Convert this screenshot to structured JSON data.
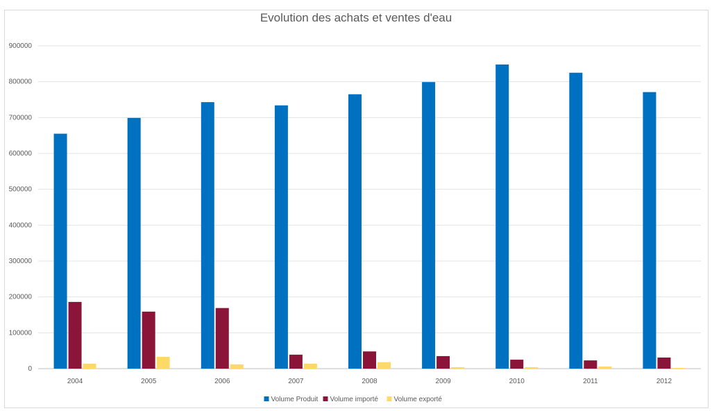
{
  "chart_data": {
    "type": "bar",
    "title": "Evolution des achats et ventes d'eau",
    "xlabel": "",
    "ylabel": "",
    "categories": [
      "2004",
      "2005",
      "2006",
      "2007",
      "2008",
      "2009",
      "2010",
      "2011",
      "2012"
    ],
    "ylim": [
      0,
      900000
    ],
    "yticks": [
      "0",
      "100000",
      "200000",
      "300000",
      "400000",
      "500000",
      "600000",
      "700000",
      "800000",
      "900000"
    ],
    "grid": true,
    "legend_position": "bottom",
    "series": [
      {
        "name": "Volume Produit",
        "color": "#0070c0",
        "values": [
          655000,
          699000,
          743000,
          734000,
          765000,
          799000,
          848000,
          825000,
          771000
        ]
      },
      {
        "name": "Volume importé",
        "color": "#8b1538",
        "values": [
          186000,
          159000,
          169000,
          39000,
          48000,
          35000,
          25000,
          23000,
          31000
        ]
      },
      {
        "name": "Volume exporté",
        "color": "#ffd966",
        "values": [
          14000,
          33000,
          12000,
          14000,
          18000,
          4000,
          4000,
          6000,
          2000
        ]
      }
    ]
  }
}
